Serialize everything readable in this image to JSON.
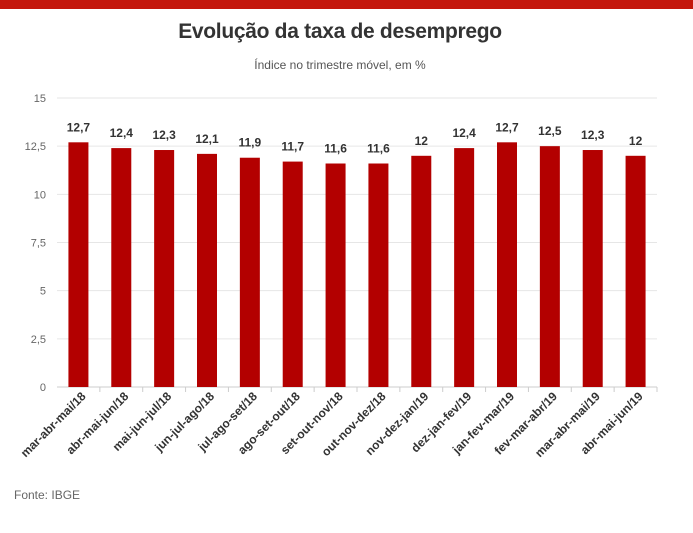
{
  "header": {
    "title": "Evolução da taxa de desemprego",
    "subtitle": "Índice no trimestre móvel, em %"
  },
  "footer": {
    "source": "Fonte: IBGE"
  },
  "colors": {
    "accent": "#c4170c",
    "bar": "#b30000",
    "grid": "#e6e6e6"
  },
  "chart_data": {
    "type": "bar",
    "title": "Evolução da taxa de desemprego",
    "subtitle": "Índice no trimestre móvel, em %",
    "xlabel": "",
    "ylabel": "",
    "ylim": [
      0,
      15
    ],
    "yticks": [
      0,
      2.5,
      5,
      7.5,
      10,
      12.5,
      15
    ],
    "ytick_labels": [
      "0",
      "2,5",
      "5",
      "7,5",
      "10",
      "12,5",
      "15"
    ],
    "grid": true,
    "categories": [
      "mar-abr-mai/18",
      "abr-mai-jun/18",
      "mai-jun-jul/18",
      "jun-jul-ago/18",
      "jul-ago-set/18",
      "ago-set-out/18",
      "set-out-nov/18",
      "out-nov-dez/18",
      "nov-dez-jan/19",
      "dez-jan-fev/19",
      "jan-fev-mar/19",
      "fev-mar-abr/19",
      "mar-abr-mai/19",
      "abr-mai-jun/19"
    ],
    "values": [
      12.7,
      12.4,
      12.3,
      12.1,
      11.9,
      11.7,
      11.6,
      11.6,
      12.0,
      12.4,
      12.7,
      12.5,
      12.3,
      12.0
    ],
    "data_labels": [
      "12,7",
      "12,4",
      "12,3",
      "12,1",
      "11,9",
      "11,7",
      "11,6",
      "11,6",
      "12",
      "12,4",
      "12,7",
      "12,5",
      "12,3",
      "12"
    ]
  }
}
